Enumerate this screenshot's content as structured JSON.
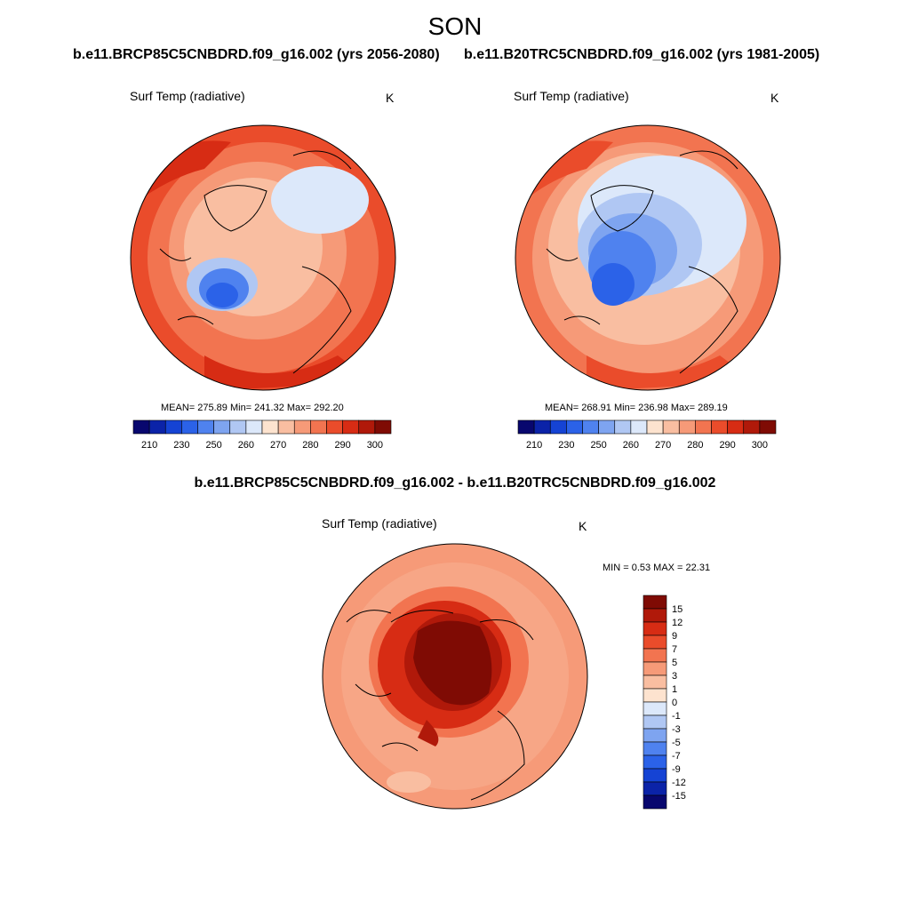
{
  "title": "SON",
  "panels": {
    "future": {
      "case_title": "b.e11.BRCP85C5CNBDRD.f09_g16.002 (yrs 2056-2080)",
      "variable": "Surf Temp (radiative)",
      "units": "K",
      "stats": "MEAN= 275.89  Min= 241.32  Max= 292.20"
    },
    "historical": {
      "case_title": "b.e11.B20TRC5CNBDRD.f09_g16.002 (yrs 1981-2005)",
      "variable": "Surf Temp (radiative)",
      "units": "K",
      "stats": "MEAN= 268.91  Min= 236.98  Max= 289.19"
    },
    "difference": {
      "case_title": "b.e11.BRCP85C5CNBDRD.f09_g16.002 - b.e11.B20TRC5CNBDRD.f09_g16.002",
      "variable": "Surf Temp (radiative)",
      "units": "K",
      "stats": "MIN =   0.53 MAX =  22.31"
    }
  },
  "abs_colorbar": {
    "colors": [
      "#08076e",
      "#0b23a8",
      "#1543d4",
      "#2b62e8",
      "#4f82ef",
      "#7ea4f0",
      "#b0c7f3",
      "#dce8fa",
      "#fde3cf",
      "#f9bea1",
      "#f69a78",
      "#f27450",
      "#ea4c2b",
      "#d72c14",
      "#b0190a",
      "#7f0b04"
    ],
    "labels": [
      "210",
      "230",
      "250",
      "260",
      "270",
      "280",
      "290",
      "300"
    ]
  },
  "diff_colorbar": {
    "colors": [
      "#7f0b04",
      "#b0190a",
      "#d72c14",
      "#ea4c2b",
      "#f27450",
      "#f69a78",
      "#f9bea1",
      "#fde3cf",
      "#dce8fa",
      "#b0c7f3",
      "#7ea4f0",
      "#4f82ef",
      "#2b62e8",
      "#1543d4",
      "#0b23a8",
      "#08076e"
    ],
    "labels": [
      "15",
      "12",
      "9",
      "7",
      "5",
      "3",
      "1",
      "0",
      "-1",
      "-3",
      "-5",
      "-7",
      "-9",
      "-12",
      "-15"
    ]
  },
  "palette": {
    "warm_dark": "#7f0b04",
    "warm_mid": "#e9502d",
    "warm_light": "#f6a07e",
    "cool_light": "#dce8fa",
    "cool_mid": "#7ea4f0",
    "cool_dark": "#2b62e8"
  }
}
